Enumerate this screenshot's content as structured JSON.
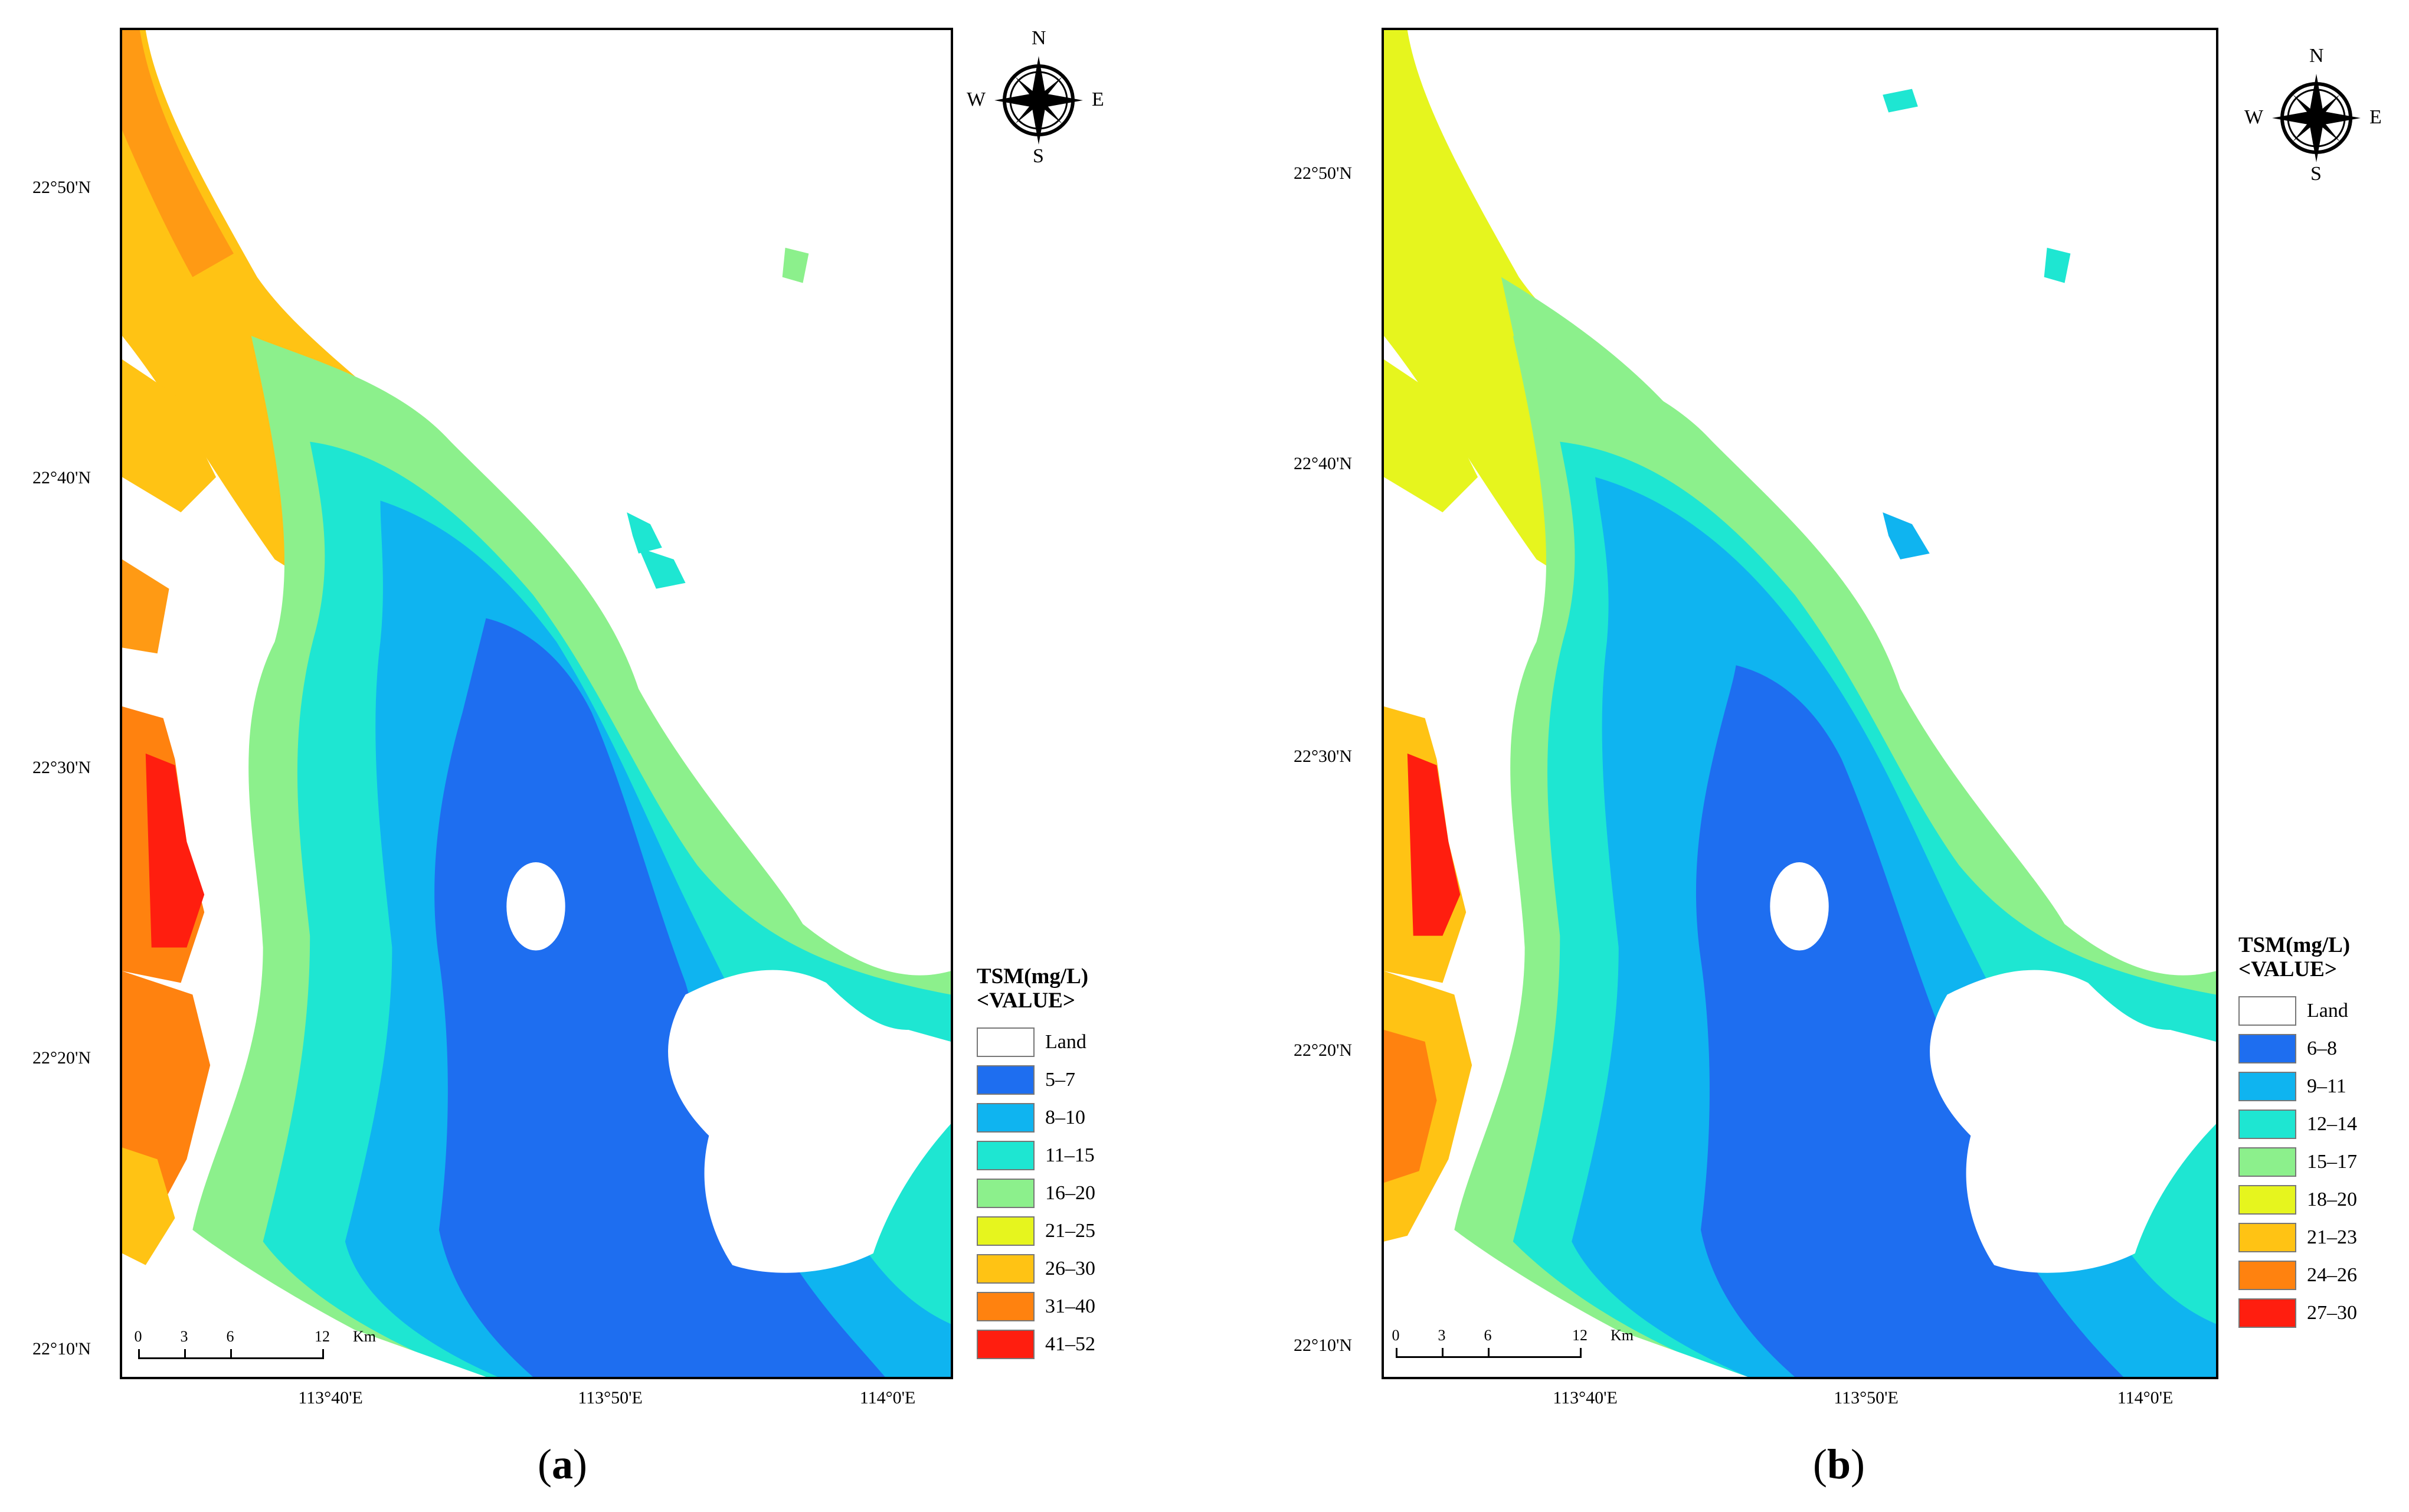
{
  "panels": [
    {
      "caption": "a",
      "legend": {
        "title": "TSM(mg/L)",
        "subtitle": "<VALUE>",
        "classes": [
          {
            "label": "Land",
            "color": "#ffffff"
          },
          {
            "label": "5–7",
            "color": "#1e6ef0"
          },
          {
            "label": "8–10",
            "color": "#0fb4f0"
          },
          {
            "label": "11–15",
            "color": "#1ee6d2"
          },
          {
            "label": "16–20",
            "color": "#8cf08c"
          },
          {
            "label": "21–25",
            "color": "#e6f51e"
          },
          {
            "label": "26–30",
            "color": "#ffc314"
          },
          {
            "label": "31–40",
            "color": "#ff820f"
          },
          {
            "label": "41–52",
            "color": "#ff1e0f"
          }
        ]
      }
    },
    {
      "caption": "b",
      "legend": {
        "title": "TSM(mg/L)",
        "subtitle": "<VALUE>",
        "classes": [
          {
            "label": "Land",
            "color": "#ffffff"
          },
          {
            "label": "6–8",
            "color": "#1e6ef0"
          },
          {
            "label": "9–11",
            "color": "#0fb4f0"
          },
          {
            "label": "12–14",
            "color": "#1ee6d2"
          },
          {
            "label": "15–17",
            "color": "#8cf08c"
          },
          {
            "label": "18–20",
            "color": "#e6f51e"
          },
          {
            "label": "21–23",
            "color": "#ffc314"
          },
          {
            "label": "24–26",
            "color": "#ff820f"
          },
          {
            "label": "27–30",
            "color": "#ff1e0f"
          }
        ]
      }
    }
  ],
  "lat_labels": [
    "22°50'N",
    "22°40'N",
    "22°30'N",
    "22°20'N",
    "22°10'N"
  ],
  "lon_labels": [
    "113°40'E",
    "113°50'E",
    "114°0'E"
  ],
  "compass": {
    "n": "N",
    "s": "S",
    "e": "E",
    "w": "W"
  },
  "scalebar": {
    "ticks": [
      "0",
      "3",
      "6",
      "12"
    ],
    "unit": "Km"
  }
}
